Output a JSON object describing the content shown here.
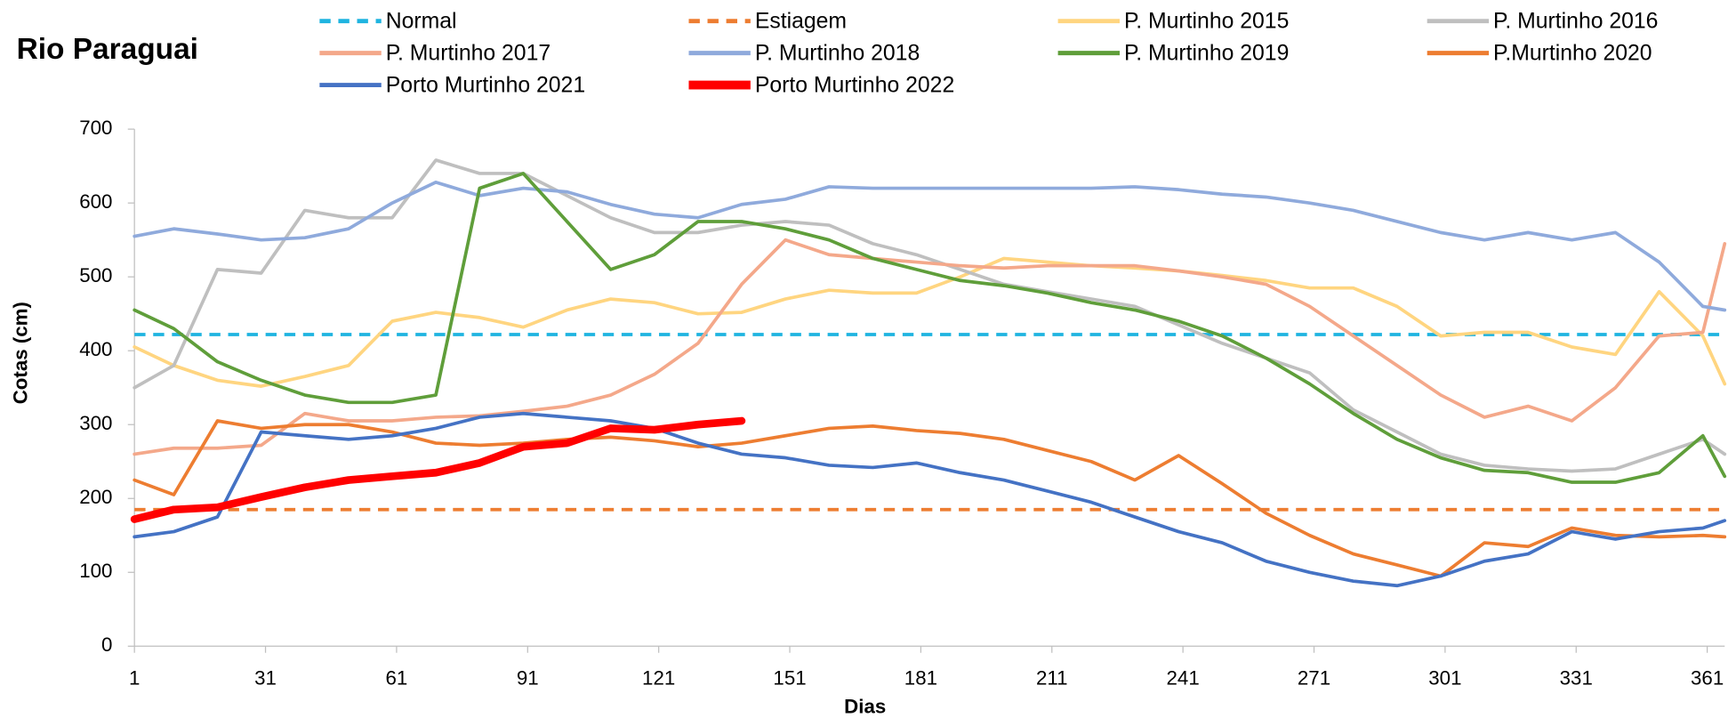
{
  "chart_data": {
    "type": "line",
    "title": "Rio Paraguai",
    "xlabel": "Dias",
    "ylabel": "Cotas  (cm)",
    "x": [
      1,
      10,
      20,
      30,
      40,
      50,
      60,
      70,
      80,
      90,
      100,
      110,
      120,
      130,
      140,
      150,
      160,
      170,
      180,
      190,
      200,
      210,
      220,
      230,
      240,
      250,
      260,
      270,
      280,
      290,
      300,
      310,
      320,
      330,
      340,
      350,
      360,
      365
    ],
    "xlim": [
      1,
      365
    ],
    "ylim": [
      0,
      700
    ],
    "xticks": [
      1,
      31,
      61,
      91,
      121,
      151,
      181,
      211,
      241,
      271,
      301,
      331,
      361
    ],
    "yticks": [
      0,
      100,
      200,
      300,
      400,
      500,
      600,
      700
    ],
    "series": [
      {
        "name": "Normal",
        "color": "#1fb4e0",
        "dashed": true,
        "width": 3,
        "values": [
          422,
          422,
          422,
          422,
          422,
          422,
          422,
          422,
          422,
          422,
          422,
          422,
          422,
          422,
          422,
          422,
          422,
          422,
          422,
          422,
          422,
          422,
          422,
          422,
          422,
          422,
          422,
          422,
          422,
          422,
          422,
          422,
          422,
          422,
          422,
          422,
          422,
          422
        ]
      },
      {
        "name": "Estiagem",
        "color": "#ed7d31",
        "dashed": true,
        "width": 3,
        "values": [
          185,
          185,
          185,
          185,
          185,
          185,
          185,
          185,
          185,
          185,
          185,
          185,
          185,
          185,
          185,
          185,
          185,
          185,
          185,
          185,
          185,
          185,
          185,
          185,
          185,
          185,
          185,
          185,
          185,
          185,
          185,
          185,
          185,
          185,
          185,
          185,
          185,
          185
        ]
      },
      {
        "name": "P. Murtinho 2015",
        "color": "#ffd580",
        "dashed": false,
        "width": 3,
        "values": [
          405,
          380,
          360,
          352,
          365,
          380,
          440,
          452,
          445,
          432,
          455,
          470,
          465,
          450,
          452,
          470,
          482,
          478,
          478,
          500,
          525,
          520,
          515,
          512,
          508,
          502,
          495,
          485,
          485,
          460,
          420,
          425,
          425,
          405,
          395,
          480,
          420,
          355
        ]
      },
      {
        "name": "P. Murtinho 2016",
        "color": "#bfbfbf",
        "dashed": false,
        "width": 3,
        "values": [
          350,
          380,
          510,
          505,
          590,
          580,
          580,
          658,
          640,
          640,
          610,
          580,
          560,
          560,
          570,
          575,
          570,
          545,
          530,
          510,
          490,
          480,
          470,
          460,
          435,
          410,
          390,
          370,
          320,
          290,
          260,
          245,
          240,
          237,
          240,
          260,
          280,
          260
        ]
      },
      {
        "name": "P. Murtinho 2017",
        "color": "#f4a88a",
        "dashed": false,
        "width": 3,
        "values": [
          260,
          268,
          268,
          272,
          315,
          305,
          305,
          310,
          312,
          318,
          325,
          340,
          368,
          410,
          490,
          550,
          530,
          525,
          520,
          515,
          512,
          515,
          515,
          515,
          508,
          500,
          490,
          460,
          420,
          380,
          340,
          310,
          325,
          305,
          350,
          420,
          425,
          545
        ]
      },
      {
        "name": "P. Murtinho 2018",
        "color": "#8faadc",
        "dashed": false,
        "width": 3,
        "values": [
          555,
          565,
          558,
          550,
          553,
          565,
          600,
          628,
          610,
          620,
          615,
          598,
          585,
          580,
          598,
          605,
          622,
          620,
          620,
          620,
          620,
          620,
          620,
          622,
          618,
          612,
          608,
          600,
          590,
          575,
          560,
          550,
          560,
          550,
          560,
          520,
          460,
          455
        ]
      },
      {
        "name": "P. Murtinho 2019",
        "color": "#5f9e3a",
        "dashed": false,
        "width": 3,
        "values": [
          455,
          430,
          385,
          360,
          340,
          330,
          330,
          340,
          620,
          640,
          575,
          510,
          530,
          575,
          575,
          565,
          550,
          525,
          510,
          495,
          488,
          478,
          465,
          455,
          440,
          420,
          390,
          355,
          315,
          280,
          255,
          238,
          235,
          222,
          222,
          235,
          285,
          230
        ]
      },
      {
        "name": "P.Murtinho 2020",
        "color": "#ed7d31",
        "dashed": false,
        "width": 3,
        "values": [
          225,
          205,
          305,
          295,
          300,
          300,
          290,
          275,
          272,
          275,
          280,
          283,
          278,
          270,
          275,
          285,
          295,
          298,
          292,
          288,
          280,
          265,
          250,
          225,
          258,
          220,
          180,
          150,
          125,
          110,
          95,
          140,
          135,
          160,
          150,
          148,
          150,
          148
        ]
      },
      {
        "name": "Porto Murtinho 2021",
        "color": "#4472c4",
        "dashed": false,
        "width": 3,
        "values": [
          148,
          155,
          175,
          290,
          285,
          280,
          285,
          295,
          310,
          315,
          310,
          305,
          295,
          275,
          260,
          255,
          245,
          242,
          248,
          235,
          225,
          210,
          195,
          175,
          155,
          140,
          115,
          100,
          88,
          82,
          95,
          115,
          125,
          155,
          145,
          155,
          160,
          170
        ]
      },
      {
        "name": "Porto Murtinho 2022",
        "color": "#ff0000",
        "dashed": false,
        "width": 7,
        "values": [
          172,
          185,
          188,
          202,
          215,
          225,
          230,
          235,
          248,
          270,
          275,
          295,
          293,
          300,
          305,
          null,
          null,
          null,
          null,
          null,
          null,
          null,
          null,
          null,
          null,
          null,
          null,
          null,
          null,
          null,
          null,
          null,
          null,
          null,
          null,
          null,
          null,
          null
        ]
      }
    ]
  }
}
